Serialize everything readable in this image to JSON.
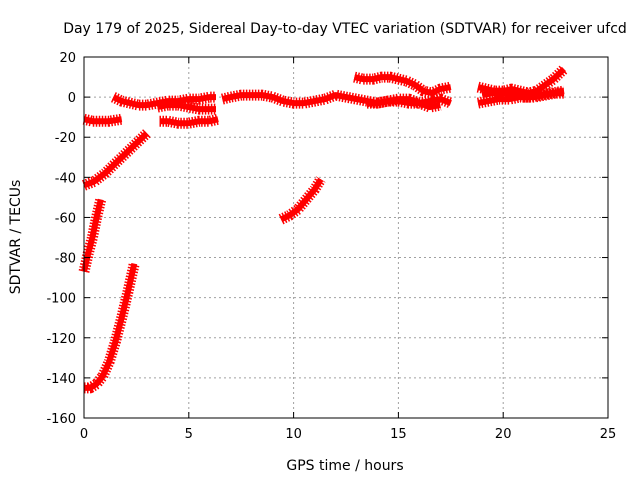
{
  "chart_data": {
    "type": "scatter",
    "title": "Day 179 of 2025, Sidereal Day-to-day VTEC variation (SDTVAR) for receiver ufcd",
    "xlabel": "GPS time / hours",
    "ylabel": "SDTVAR / TECUs",
    "xlim": [
      0,
      25
    ],
    "ylim": [
      -160,
      20
    ],
    "xticks": [
      "0",
      "5",
      "10",
      "15",
      "20",
      "25"
    ],
    "yticks": [
      "20",
      "0",
      "-20",
      "-40",
      "-60",
      "-80",
      "-100",
      "-120",
      "-140",
      "-160"
    ],
    "grid": true,
    "legend": "none",
    "series_color": "#ff0000",
    "series": [
      {
        "x": [
          0.0,
          0.4,
          0.8,
          1.2,
          1.8
        ],
        "y": [
          -11,
          -12,
          -12,
          -12,
          -11
        ]
      },
      {
        "x": [
          1.4,
          1.8,
          2.2,
          2.6,
          3.0,
          3.5,
          4.0,
          4.5,
          5.0,
          5.5,
          6.0,
          6.3
        ],
        "y": [
          0,
          -2,
          -3,
          -4,
          -4,
          -3,
          -2,
          -2,
          -1,
          -1,
          0,
          0
        ]
      },
      {
        "x": [
          3.5,
          4.0,
          4.5,
          5.0,
          5.5,
          6.0,
          6.3
        ],
        "y": [
          -5,
          -4,
          -4,
          -5,
          -6,
          -6,
          -6
        ]
      },
      {
        "x": [
          3.6,
          4.0,
          4.5,
          5.0,
          5.5,
          6.0,
          6.4
        ],
        "y": [
          -12,
          -12,
          -13,
          -13,
          -12,
          -12,
          -11
        ]
      },
      {
        "x": [
          0.0,
          0.5,
          1.0,
          1.5,
          2.0,
          2.5,
          3.0
        ],
        "y": [
          -44,
          -42,
          -38,
          -33,
          -28,
          -23,
          -18
        ]
      },
      {
        "x": [
          0.0,
          0.2,
          0.4,
          0.6,
          0.8
        ],
        "y": [
          -87,
          -78,
          -70,
          -60,
          -51
        ]
      },
      {
        "x": [
          0.0,
          0.3,
          0.6,
          0.9,
          1.2,
          1.5,
          1.8,
          2.1,
          2.4
        ],
        "y": [
          -145,
          -145,
          -143,
          -139,
          -132,
          -122,
          -110,
          -97,
          -83
        ]
      },
      {
        "x": [
          9.4,
          9.8,
          10.2,
          10.6,
          11.0,
          11.3
        ],
        "y": [
          -61,
          -59,
          -56,
          -51,
          -46,
          -41
        ]
      },
      {
        "x": [
          6.6,
          7.0,
          7.5,
          8.0,
          8.5,
          9.0,
          9.5,
          10.0,
          10.5,
          11.0,
          11.5,
          12.0,
          12.5,
          13.0,
          13.5,
          14.0,
          14.5,
          15.0,
          15.5,
          16.0,
          16.5,
          17.0,
          17.5
        ],
        "y": [
          -1,
          0,
          1,
          1,
          1,
          0,
          -2,
          -3,
          -3,
          -2,
          -1,
          1,
          0,
          -1,
          -2,
          -3,
          -2,
          -2,
          -3,
          -3,
          -2,
          -1,
          -3
        ]
      },
      {
        "x": [
          12.9,
          13.3,
          13.8,
          14.2,
          14.6,
          15.0,
          15.4,
          15.8,
          16.2,
          16.6,
          17.0,
          17.5
        ],
        "y": [
          10,
          9,
          9,
          10,
          10,
          9,
          8,
          6,
          3,
          2,
          4,
          5
        ]
      },
      {
        "x": [
          13.5,
          14.0,
          14.5,
          15.0,
          15.5,
          16.0,
          16.5,
          17.0
        ],
        "y": [
          -3,
          -3,
          -2,
          -1,
          -1,
          -3,
          -5,
          -4
        ]
      },
      {
        "x": [
          18.8,
          19.2,
          19.6,
          20.0,
          20.4,
          20.8,
          21.2,
          21.6,
          22.0,
          22.4,
          22.9
        ],
        "y": [
          5,
          4,
          3,
          3,
          4,
          3,
          2,
          3,
          6,
          9,
          14
        ]
      },
      {
        "x": [
          18.8,
          19.3,
          19.8,
          20.3,
          20.8,
          21.3,
          21.8,
          22.3,
          22.9
        ],
        "y": [
          -3,
          -2,
          -1,
          -1,
          0,
          0,
          1,
          2,
          3
        ]
      },
      {
        "x": [
          19.0,
          19.5,
          20.0,
          20.5,
          21.0,
          21.5,
          22.0,
          22.5,
          22.9
        ],
        "y": [
          1,
          2,
          2,
          1,
          0,
          0,
          1,
          2,
          2
        ]
      }
    ]
  }
}
